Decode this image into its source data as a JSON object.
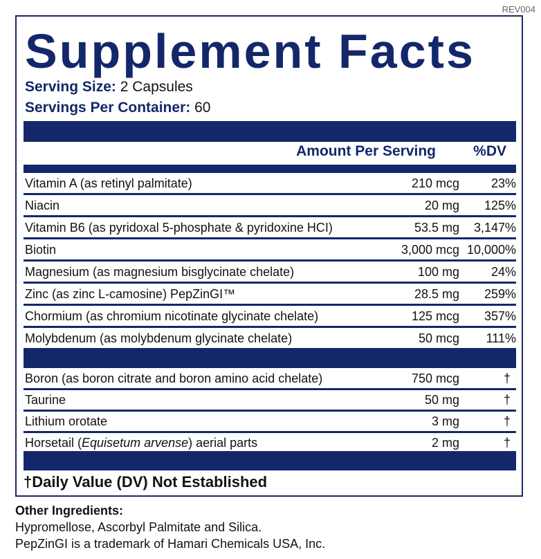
{
  "rev_code": "REV004",
  "title": "Supplement Facts",
  "serving_size": {
    "label": "Serving Size:",
    "value": "2 Capsules"
  },
  "servings_per_container": {
    "label": "Servings Per Container:",
    "value": "60"
  },
  "header": {
    "amount": "Amount Per Serving",
    "dv": "%DV"
  },
  "nutrients": [
    {
      "name": "Vitamin A (as retinyl palmitate)",
      "amount": "210 mcg",
      "dv": "23%"
    },
    {
      "name": "Niacin",
      "amount": "20 mg",
      "dv": "125%"
    },
    {
      "name": "Vitamin B6 (as pyridoxal 5-phosphate & pyridoxine HCI)",
      "amount": "53.5 mg",
      "dv": "3,147%"
    },
    {
      "name": "Biotin",
      "amount": "3,000 mcg",
      "dv": "10,000%"
    },
    {
      "name": "Magnesium (as magnesium bisglycinate chelate)",
      "amount": "100 mg",
      "dv": "24%"
    },
    {
      "name": "Zinc (as zinc L-camosine) PepZinGI™",
      "amount": "28.5 mg",
      "dv": "259%"
    },
    {
      "name": "Chormium (as chromium nicotinate glycinate chelate)",
      "amount": "125 mcg",
      "dv": "357%"
    },
    {
      "name": "Molybdenum (as molybdenum glycinate chelate)",
      "amount": "50 mcg",
      "dv": "111%"
    }
  ],
  "other_nutrients": [
    {
      "name": "Boron (as boron citrate and boron amino acid chelate)",
      "amount": "750 mcg",
      "dv": "†"
    },
    {
      "name": "Taurine",
      "amount": "50 mg",
      "dv": "†"
    },
    {
      "name": "Lithium orotate",
      "amount": "3 mg",
      "dv": "†"
    },
    {
      "name_prefix": "Horsetail (",
      "name_italic": "Equisetum arvense",
      "name_suffix": ") aerial parts",
      "amount": "2 mg",
      "dv": "†"
    }
  ],
  "footnote": "†Daily Value (DV) Not Established",
  "other_ingredients": {
    "heading": "Other Ingredients:",
    "text": "Hypromellose, Ascorbyl Palmitate and Silica.",
    "trademark": "PepZinGI is a trademark of Hamari Chemicals USA, Inc."
  },
  "colors": {
    "brand_navy": "#13276a",
    "text": "#121212"
  }
}
